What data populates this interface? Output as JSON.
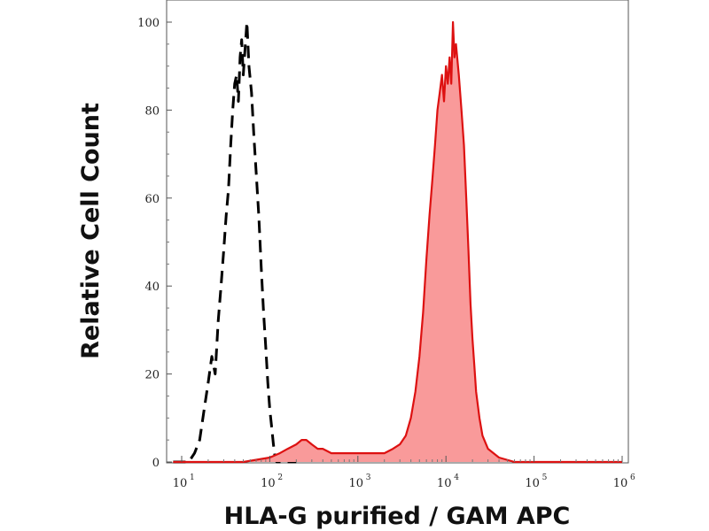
{
  "chart_data": {
    "type": "area",
    "title": "",
    "xlabel": "HLA-G purified / GAM APC",
    "ylabel": "Relative Cell Count",
    "x_scale": "log",
    "xlim": [
      10,
      1000000
    ],
    "ylim": [
      0,
      100
    ],
    "x_ticks": [
      {
        "value": 10,
        "base": "10",
        "exp": "1"
      },
      {
        "value": 100,
        "base": "10",
        "exp": "2"
      },
      {
        "value": 1000,
        "base": "10",
        "exp": "3"
      },
      {
        "value": 10000,
        "base": "10",
        "exp": "4"
      },
      {
        "value": 100000,
        "base": "10",
        "exp": "5"
      },
      {
        "value": 1000000,
        "base": "10",
        "exp": "6"
      }
    ],
    "y_ticks": [
      "0",
      "20",
      "40",
      "60",
      "80",
      "100"
    ],
    "grid": false,
    "legend": "none",
    "series": [
      {
        "style": "dashed",
        "color": "#000000",
        "fill": "none",
        "points": [
          [
            8,
            0
          ],
          [
            12,
            0
          ],
          [
            14,
            2
          ],
          [
            16,
            5
          ],
          [
            18,
            12
          ],
          [
            20,
            18
          ],
          [
            22,
            24
          ],
          [
            24,
            20
          ],
          [
            26,
            32
          ],
          [
            28,
            40
          ],
          [
            30,
            48
          ],
          [
            32,
            56
          ],
          [
            34,
            62
          ],
          [
            36,
            72
          ],
          [
            38,
            80
          ],
          [
            40,
            86
          ],
          [
            42,
            88
          ],
          [
            44,
            82
          ],
          [
            46,
            92
          ],
          [
            48,
            96
          ],
          [
            50,
            88
          ],
          [
            52,
            93
          ],
          [
            55,
            100
          ],
          [
            58,
            90
          ],
          [
            62,
            84
          ],
          [
            66,
            74
          ],
          [
            70,
            66
          ],
          [
            75,
            56
          ],
          [
            80,
            44
          ],
          [
            85,
            34
          ],
          [
            90,
            26
          ],
          [
            95,
            18
          ],
          [
            100,
            12
          ],
          [
            105,
            8
          ],
          [
            110,
            4
          ],
          [
            115,
            1
          ],
          [
            120,
            0
          ],
          [
            200,
            0
          ]
        ]
      },
      {
        "style": "solid",
        "color": "#dd1111",
        "fill": "#f99a9a",
        "points": [
          [
            8,
            0
          ],
          [
            50,
            0
          ],
          [
            100,
            1
          ],
          [
            130,
            2
          ],
          [
            160,
            3
          ],
          [
            200,
            4
          ],
          [
            230,
            5
          ],
          [
            260,
            5
          ],
          [
            300,
            4
          ],
          [
            350,
            3
          ],
          [
            400,
            3
          ],
          [
            500,
            2
          ],
          [
            600,
            2
          ],
          [
            800,
            2
          ],
          [
            1000,
            2
          ],
          [
            1300,
            2
          ],
          [
            1600,
            2
          ],
          [
            2000,
            2
          ],
          [
            2500,
            3
          ],
          [
            3000,
            4
          ],
          [
            3500,
            6
          ],
          [
            4000,
            10
          ],
          [
            4500,
            16
          ],
          [
            5000,
            24
          ],
          [
            5500,
            34
          ],
          [
            6000,
            46
          ],
          [
            6500,
            56
          ],
          [
            7000,
            64
          ],
          [
            7500,
            72
          ],
          [
            8000,
            80
          ],
          [
            8500,
            84
          ],
          [
            9000,
            88
          ],
          [
            9500,
            82
          ],
          [
            10000,
            90
          ],
          [
            10500,
            86
          ],
          [
            11000,
            92
          ],
          [
            11500,
            86
          ],
          [
            12000,
            100
          ],
          [
            12500,
            92
          ],
          [
            13000,
            95
          ],
          [
            14000,
            88
          ],
          [
            15000,
            80
          ],
          [
            16000,
            72
          ],
          [
            17000,
            60
          ],
          [
            18000,
            48
          ],
          [
            19000,
            36
          ],
          [
            20000,
            28
          ],
          [
            21000,
            22
          ],
          [
            22000,
            16
          ],
          [
            24000,
            10
          ],
          [
            26000,
            6
          ],
          [
            30000,
            3
          ],
          [
            40000,
            1
          ],
          [
            60000,
            0
          ],
          [
            100000,
            0
          ],
          [
            1000000,
            0
          ]
        ]
      }
    ]
  }
}
